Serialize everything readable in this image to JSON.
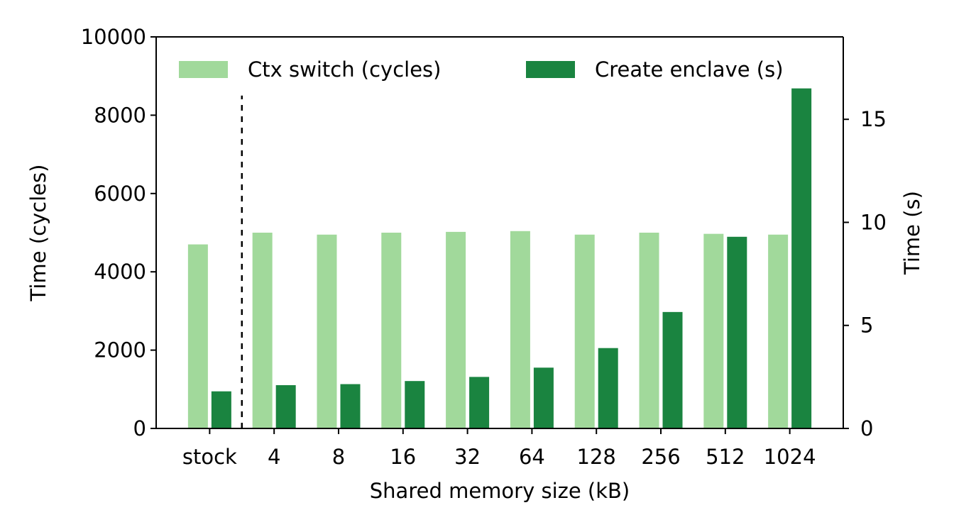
{
  "chart_data": {
    "type": "bar",
    "categories": [
      "stock",
      "4",
      "8",
      "16",
      "32",
      "64",
      "128",
      "256",
      "512",
      "1024"
    ],
    "series": [
      {
        "name": "Ctx switch (cycles)",
        "axis": "left",
        "color": "#a1d99b",
        "values": [
          4700,
          5000,
          4950,
          5000,
          5020,
          5040,
          4950,
          5000,
          4970,
          4950
        ]
      },
      {
        "name": "Create enclave (s)",
        "axis": "right",
        "color": "#1a8440",
        "values": [
          1.8,
          2.1,
          2.15,
          2.3,
          2.5,
          2.95,
          3.9,
          5.65,
          9.3,
          16.5
        ]
      }
    ],
    "xlabel": "Shared memory size (kB)",
    "ylabel_left": "Time (cycles)",
    "ylabel_right": "Time (s)",
    "ylim_left": [
      0,
      10000
    ],
    "yticks_left": [
      0,
      2000,
      4000,
      6000,
      8000,
      10000
    ],
    "ylim_right": [
      0,
      19
    ],
    "yticks_right": [
      0,
      5,
      10,
      15
    ],
    "separator_after_category": "stock",
    "separator_style": "dashed",
    "grid": false,
    "legend_position": "top"
  }
}
